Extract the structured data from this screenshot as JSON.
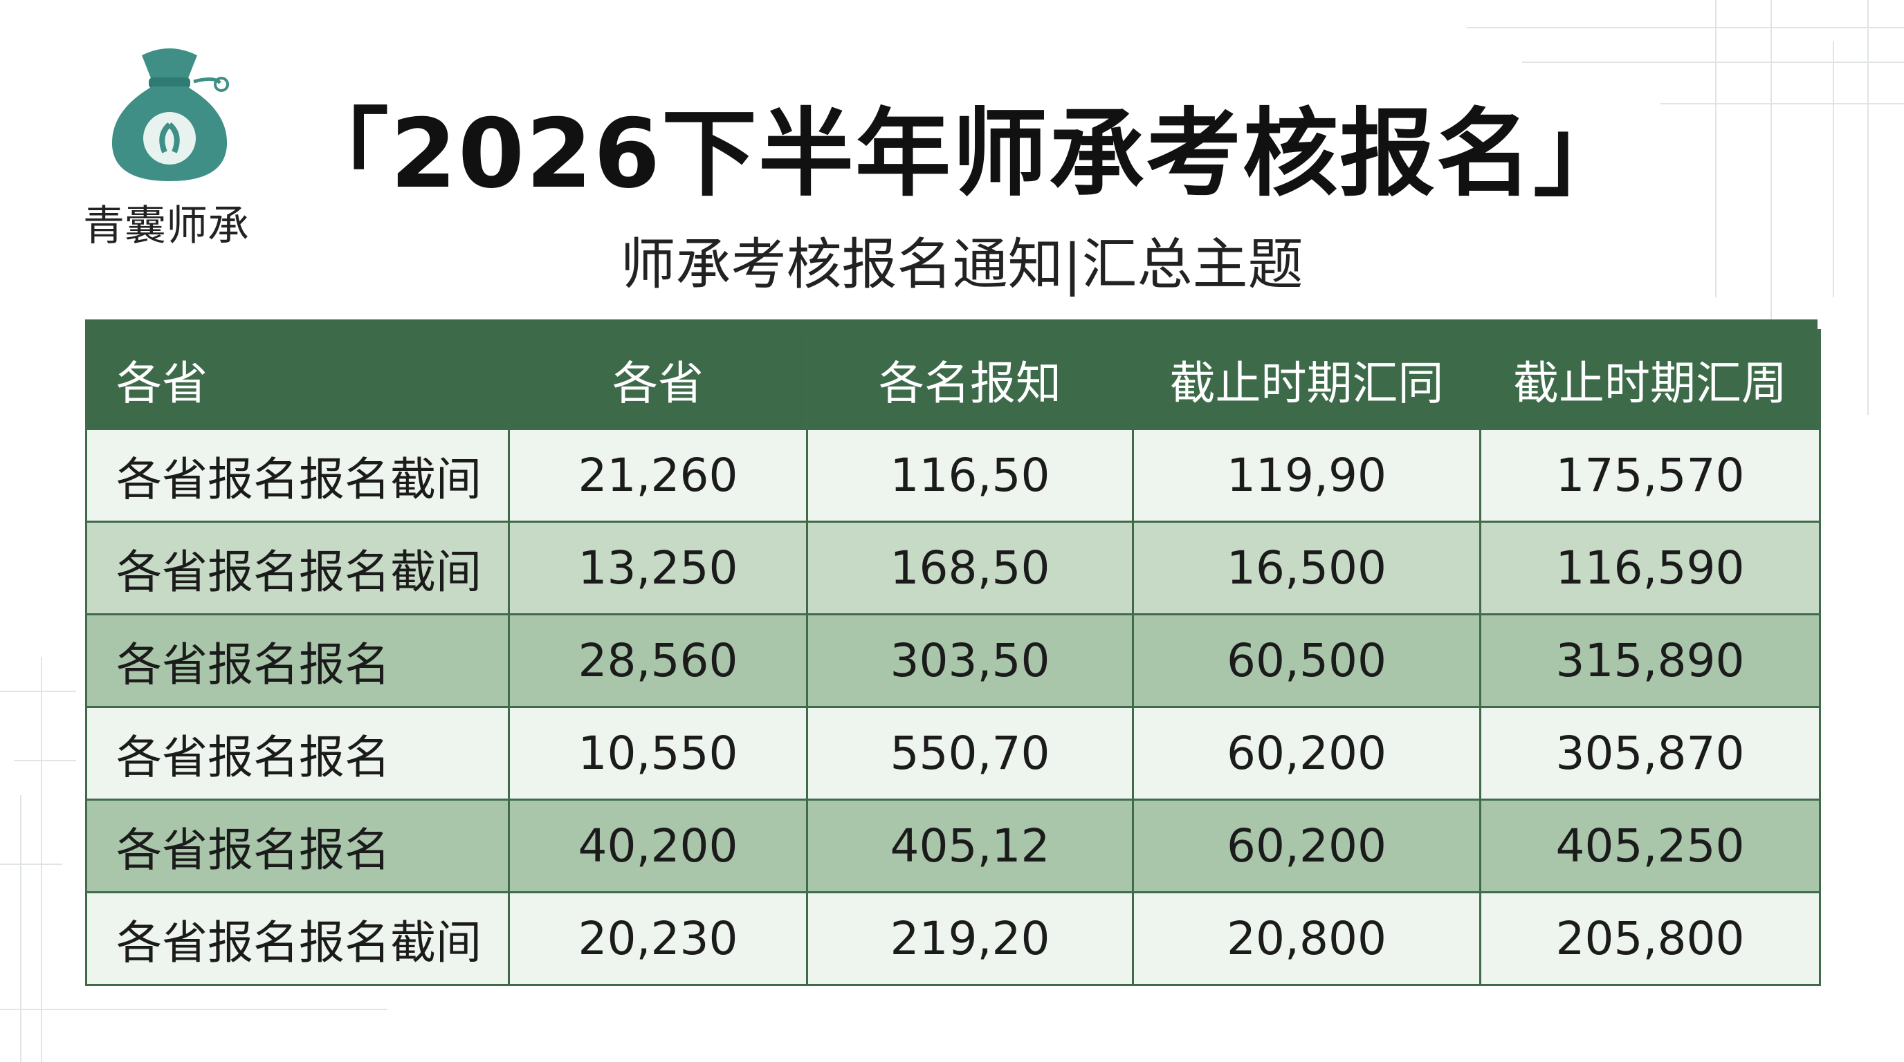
{
  "logo": {
    "text": "青囊师承"
  },
  "header": {
    "title": "「2026下半年师承考核报名」",
    "subtitle": "师承考核报名通知|汇总主题"
  },
  "table": {
    "columns": [
      "各省",
      "各省",
      "各名报知",
      "截止时期汇同",
      "截止时期汇周"
    ],
    "rows": [
      [
        "各省报名报名截间",
        "21,260",
        "116,50",
        "119,90",
        "175,570"
      ],
      [
        "各省报名报名截间",
        "13,250",
        "168,50",
        "16,500",
        "116,590"
      ],
      [
        "各省报名报名",
        "28,560",
        "303,50",
        "60,500",
        "315,890"
      ],
      [
        "各省报名报名",
        "10,550",
        "550,70",
        "60,200",
        "305,870"
      ],
      [
        "各省报名报名",
        "40,200",
        "405,12",
        "60,200",
        "405,250"
      ],
      [
        "各省报名报名截间",
        "20,230",
        "219,20",
        "20,800",
        "205,800"
      ]
    ]
  }
}
